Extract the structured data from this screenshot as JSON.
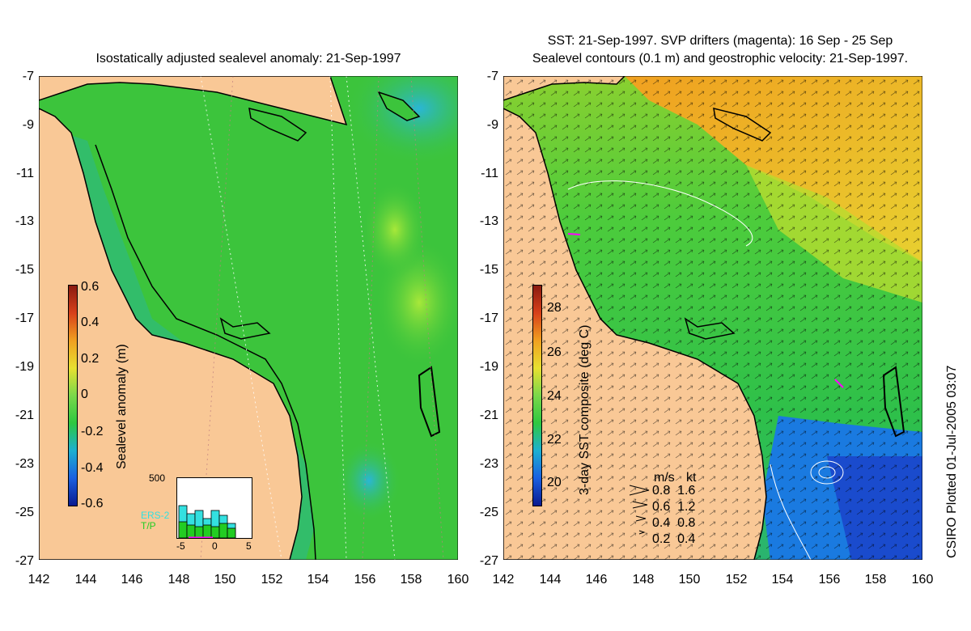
{
  "left_map": {
    "title": "Isostatically adjusted sealevel anomaly: 21-Sep-1997",
    "colorbar_label": "Sealevel anomaly (m)",
    "colorbar_ticks": [
      "0.6",
      "0.4",
      "0.2",
      "0",
      "-0.2",
      "-0.4",
      "-0.6"
    ],
    "inset": {
      "y_label": "500",
      "series": [
        "ERS-2",
        "T/P"
      ],
      "series_colors": [
        "#33e0e0",
        "#22cc22"
      ],
      "x_ticks": [
        "-5",
        "0",
        "5"
      ]
    }
  },
  "right_map": {
    "title_line1": "SST: 21-Sep-1997. SVP drifters (magenta): 16 Sep - 25 Sep",
    "title_line2": "Sealevel contours (0.1 m) and geostrophic velocity: 21-Sep-1997.",
    "colorbar_label": "3-day SST composite (deg C)",
    "colorbar_ticks": [
      "28",
      "26",
      "24",
      "22",
      "20"
    ],
    "legend": {
      "header_ms": "m/s",
      "header_kt": "kt",
      "rows": [
        {
          "ms": "0.8",
          "kt": "1.6"
        },
        {
          "ms": "0.6",
          "kt": "1.2"
        },
        {
          "ms": "0.4",
          "kt": "0.8"
        },
        {
          "ms": "0.2",
          "kt": "0.4"
        }
      ]
    }
  },
  "axes": {
    "lat_ticks": [
      "-7",
      "-9",
      "-11",
      "-13",
      "-15",
      "-17",
      "-19",
      "-21",
      "-23",
      "-25",
      "-27"
    ],
    "lon_ticks": [
      "142",
      "144",
      "146",
      "148",
      "150",
      "152",
      "154",
      "156",
      "158",
      "160"
    ]
  },
  "credit": "CSIRO Plotted 01-Jul-2005 03:07",
  "colors": {
    "land": "#f9c896",
    "ocean_sla": "#3cc43c",
    "sst_warm": "#f0a020",
    "sst_mid": "#2ec840",
    "sst_cool": "#1a7ae0"
  }
}
